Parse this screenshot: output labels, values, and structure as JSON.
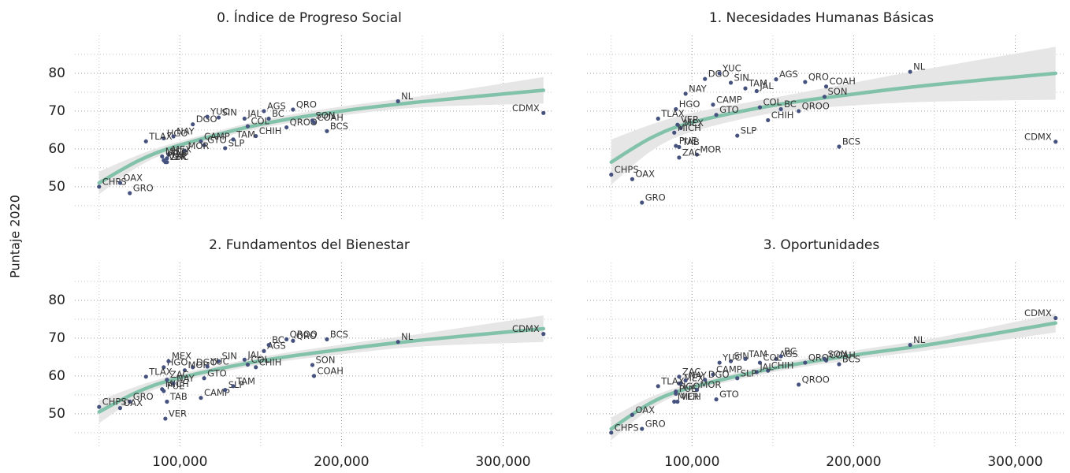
{
  "ylabel": "Puntaje 2020",
  "chart_data": [
    {
      "type": "scatter",
      "title": "0. Índice de Progreso Social",
      "labels": [
        "AGS",
        "BC",
        "BCS",
        "CAMP",
        "COAH",
        "COL",
        "CHPS",
        "CHIH",
        "CDMX",
        "DGO",
        "GTO",
        "GRO",
        "HGO",
        "JAL",
        "MEX",
        "MICH",
        "MOR",
        "NAY",
        "NL",
        "OAX",
        "PUE",
        "QRO",
        "QROO",
        "SLP",
        "SIN",
        "SON",
        "TAB",
        "TAM",
        "TLAX",
        "VER",
        "YUC",
        "ZAC"
      ],
      "x": [
        152000,
        155000,
        191000,
        113000,
        183000,
        142000,
        50000,
        147000,
        325000,
        108000,
        115000,
        69000,
        90000,
        140000,
        93000,
        89000,
        103000,
        96000,
        235000,
        63000,
        90000,
        170000,
        166000,
        128000,
        124000,
        182000,
        92000,
        133000,
        79000,
        91000,
        117000,
        92000
      ],
      "values": [
        70,
        68,
        64.7,
        62,
        67,
        66,
        50,
        63.4,
        69.5,
        66.5,
        61,
        48.3,
        62.8,
        68,
        58.5,
        58,
        59.5,
        63.3,
        72.6,
        51,
        57,
        70.4,
        65.7,
        60.2,
        68.3,
        67.5,
        57.5,
        62.5,
        62,
        56.5,
        68.5,
        56.5
      ],
      "color": "#46527e",
      "fit": {
        "x": [
          50000,
          75000,
          100000,
          150000,
          200000,
          250000,
          325000
        ],
        "values": [
          51,
          57,
          61,
          66.5,
          70,
          72.5,
          75.5
        ],
        "lower": [
          48,
          55.5,
          60,
          65.5,
          68.8,
          71,
          72
        ],
        "upper": [
          54,
          58.5,
          62,
          67.5,
          71.2,
          74,
          79
        ],
        "color": "#82c2aa",
        "band_color": "#e6e6e6"
      },
      "xlim": [
        35000,
        330000
      ],
      "ylim": [
        41,
        90
      ],
      "xticks": [
        100000,
        200000,
        300000
      ],
      "yticks": [
        50,
        60,
        70,
        80
      ],
      "xminor": [
        50000,
        150000,
        250000
      ],
      "yminor": [
        45,
        55,
        65,
        75,
        85
      ],
      "xtick_labels": false,
      "ytick_labels": true,
      "grid": true
    },
    {
      "type": "scatter",
      "title": "1. Necesidades Humanas Básicas",
      "labels": [
        "AGS",
        "BC",
        "BCS",
        "CAMP",
        "COAH",
        "COL",
        "CHPS",
        "CHIH",
        "CDMX",
        "DGO",
        "GTO",
        "GRO",
        "HGO",
        "JAL",
        "MEX",
        "MICH",
        "MOR",
        "NAY",
        "NL",
        "OAX",
        "PUE",
        "QRO",
        "QROO",
        "SLP",
        "SIN",
        "SON",
        "TAB",
        "TAM",
        "TLAX",
        "VER",
        "YUC",
        "ZAC"
      ],
      "x": [
        152000,
        155000,
        191000,
        113000,
        183000,
        142000,
        50000,
        147000,
        325000,
        108000,
        115000,
        69000,
        90000,
        140000,
        93000,
        89000,
        103000,
        96000,
        235000,
        63000,
        90000,
        170000,
        166000,
        128000,
        124000,
        182000,
        92000,
        133000,
        79000,
        91000,
        117000,
        92000
      ],
      "values": [
        78.4,
        70.5,
        60.6,
        71.7,
        76.5,
        71,
        53.2,
        67.6,
        61.9,
        78.5,
        69,
        45.8,
        70.5,
        75.3,
        65.5,
        64.3,
        58.5,
        74.6,
        80.4,
        52,
        60.8,
        77.7,
        70,
        63.5,
        77.5,
        73.8,
        60.5,
        76,
        68,
        66.4,
        80,
        57.7
      ],
      "color": "#46527e",
      "fit": {
        "x": [
          50000,
          75000,
          100000,
          150000,
          200000,
          250000,
          325000
        ],
        "values": [
          56.5,
          63,
          67,
          71.5,
          74.5,
          77,
          80
        ],
        "lower": [
          50.5,
          59.5,
          64.5,
          69.5,
          71.5,
          72.5,
          73
        ],
        "upper": [
          62.5,
          66.5,
          69.5,
          73.5,
          77.5,
          81.5,
          87
        ],
        "color": "#82c2aa",
        "band_color": "#e6e6e6"
      },
      "xlim": [
        35000,
        330000
      ],
      "ylim": [
        41,
        90
      ],
      "xticks": [
        100000,
        200000,
        300000
      ],
      "yticks": [
        50,
        60,
        70,
        80
      ],
      "xminor": [
        50000,
        150000,
        250000
      ],
      "yminor": [
        45,
        55,
        65,
        75,
        85
      ],
      "xtick_labels": false,
      "ytick_labels": false,
      "grid": true
    },
    {
      "type": "scatter",
      "title": "2. Fundamentos del Bienestar",
      "labels": [
        "AGS",
        "BC",
        "BCS",
        "CAMP",
        "COAH",
        "COL",
        "CHPS",
        "CHIH",
        "CDMX",
        "DGO",
        "GTO",
        "GRO",
        "HGO",
        "JAL",
        "MEX",
        "MICH",
        "MOR",
        "NAY",
        "NL",
        "OAX",
        "PUE",
        "QRO",
        "QROO",
        "SLP",
        "SIN",
        "SON",
        "TAB",
        "TAM",
        "TLAX",
        "VER",
        "YUC",
        "ZAC"
      ],
      "x": [
        152000,
        155000,
        191000,
        113000,
        183000,
        142000,
        50000,
        147000,
        325000,
        108000,
        115000,
        69000,
        90000,
        140000,
        93000,
        89000,
        103000,
        96000,
        235000,
        63000,
        90000,
        170000,
        166000,
        128000,
        124000,
        182000,
        92000,
        133000,
        79000,
        91000,
        117000,
        92000
      ],
      "values": [
        66.6,
        68.2,
        69.7,
        54.2,
        60,
        63,
        51.8,
        62.3,
        71.1,
        62.3,
        59.4,
        53.2,
        62.3,
        64.3,
        63.9,
        56.5,
        61.5,
        58,
        69,
        51.5,
        56,
        69.3,
        69.7,
        56.3,
        63.9,
        62.9,
        53.2,
        57.3,
        59.8,
        48.7,
        62.5,
        59
      ],
      "color": "#46527e",
      "fit": {
        "x": [
          50000,
          75000,
          100000,
          150000,
          200000,
          250000,
          325000
        ],
        "values": [
          50.5,
          56,
          59.5,
          64,
          67,
          69.5,
          72.5
        ],
        "lower": [
          47.5,
          54.5,
          58.5,
          63,
          65.7,
          67.8,
          69
        ],
        "upper": [
          53.5,
          57.5,
          60.5,
          65,
          68.3,
          71.2,
          76
        ],
        "color": "#82c2aa",
        "band_color": "#e6e6e6"
      },
      "xlim": [
        35000,
        330000
      ],
      "ylim": [
        41,
        90
      ],
      "xticks": [
        {
          "value": 100000,
          "label": "100,000"
        },
        {
          "value": 200000,
          "label": "200,000"
        },
        {
          "value": 300000,
          "label": "300,000"
        }
      ],
      "yticks": [
        50,
        60,
        70,
        80
      ],
      "xminor": [
        50000,
        150000,
        250000
      ],
      "yminor": [
        45,
        55,
        65,
        75,
        85
      ],
      "xtick_labels": true,
      "ytick_labels": true,
      "grid": true
    },
    {
      "type": "scatter",
      "title": "3. Oportunidades",
      "labels": [
        "AGS",
        "BC",
        "BCS",
        "CAMP",
        "COAH",
        "COL",
        "CHPS",
        "CHIH",
        "CDMX",
        "DGO",
        "GTO",
        "GRO",
        "HGO",
        "JAL",
        "MEX",
        "MICH",
        "MOR",
        "NAY",
        "NL",
        "OAX",
        "PUE",
        "QRO",
        "QROO",
        "SLP",
        "SIN",
        "SON",
        null,
        "TAM",
        "TLAX",
        "VER",
        "YUC",
        "ZAC"
      ],
      "x": [
        152000,
        155000,
        191000,
        113000,
        183000,
        142000,
        50000,
        147000,
        325000,
        108000,
        115000,
        69000,
        90000,
        140000,
        93000,
        89000,
        103000,
        96000,
        235000,
        63000,
        90000,
        170000,
        166000,
        128000,
        124000,
        182000,
        92000,
        133000,
        79000,
        91000,
        117000,
        92000
      ],
      "values": [
        64.5,
        65.2,
        63.1,
        60.4,
        64.1,
        63.5,
        45,
        61.4,
        75.3,
        59,
        53.8,
        46,
        55.9,
        61,
        58.1,
        53.2,
        56.3,
        58.8,
        68.2,
        49.7,
        55.3,
        63.5,
        57.7,
        59.4,
        63.9,
        64.5,
        58,
        64.5,
        57.3,
        53.2,
        63.5,
        59.8
      ],
      "color": "#46527e",
      "fit": {
        "x": [
          50000,
          75000,
          100000,
          150000,
          200000,
          250000,
          325000
        ],
        "values": [
          46,
          53,
          57,
          62,
          65.5,
          68.5,
          74
        ],
        "lower": [
          43,
          51.5,
          56,
          61,
          64.3,
          67,
          71.5
        ],
        "upper": [
          49,
          54.5,
          58,
          63,
          66.7,
          70,
          76.5
        ],
        "color": "#82c2aa",
        "band_color": "#e6e6e6"
      },
      "xlim": [
        35000,
        330000
      ],
      "ylim": [
        41,
        90
      ],
      "xticks": [
        {
          "value": 100000,
          "label": "100,000"
        },
        {
          "value": 200000,
          "label": "200,000"
        },
        {
          "value": 300000,
          "label": "300,000"
        }
      ],
      "yticks": [
        50,
        60,
        70,
        80
      ],
      "xminor": [
        50000,
        150000,
        250000
      ],
      "yminor": [
        45,
        55,
        65,
        75,
        85
      ],
      "xtick_labels": true,
      "ytick_labels": false,
      "grid": true
    }
  ]
}
